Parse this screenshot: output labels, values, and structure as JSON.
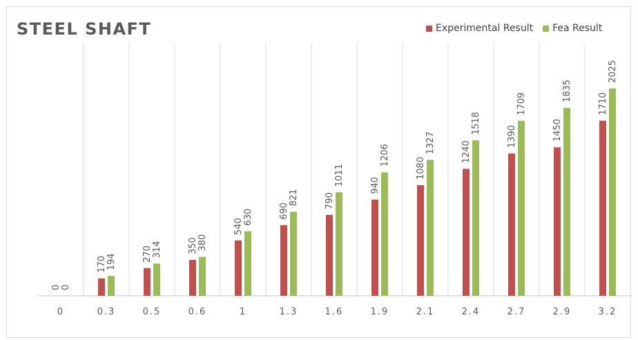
{
  "chart_data": {
    "type": "bar",
    "title": "STEEL SHAFT",
    "xlabel": "",
    "ylabel": "",
    "categories": [
      "0",
      "0.3",
      "0.5",
      "0.6",
      "1",
      "1.3",
      "1.6",
      "1.9",
      "2.1",
      "2.4",
      "2.7",
      "2.9",
      "3.2"
    ],
    "series": [
      {
        "name": "Experimental Result",
        "color": "#c0504d",
        "values": [
          0,
          170,
          270,
          350,
          540,
          690,
          790,
          940,
          1080,
          1240,
          1390,
          1450,
          1710
        ]
      },
      {
        "name": "Fea Result",
        "color": "#9bbb59",
        "values": [
          0,
          194,
          314,
          380,
          630,
          821,
          1011,
          1206,
          1327,
          1518,
          1709,
          1835,
          2025
        ]
      }
    ],
    "ylim": [
      0,
      2600
    ],
    "legend_position": "top-right",
    "grid": "vertical"
  }
}
